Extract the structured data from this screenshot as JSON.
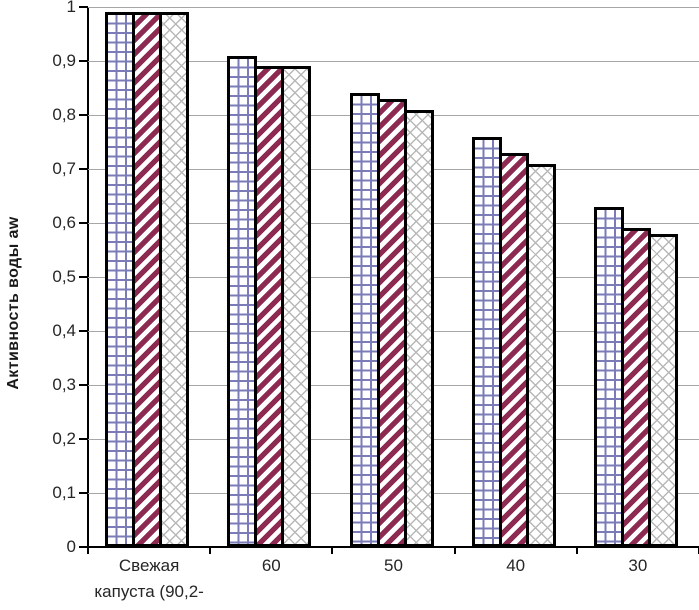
{
  "chart_data": {
    "type": "bar",
    "title": "",
    "xlabel": "",
    "ylabel": "Активность воды aw",
    "ylim": [
      0,
      1
    ],
    "ytick_labels": [
      "0",
      "0,1",
      "0,2",
      "0,3",
      "0,4",
      "0,5",
      "0,6",
      "0,7",
      "0,8",
      "0,9",
      "1"
    ],
    "categories": [
      "Свежая\nкапуста (90,2-",
      "60",
      "50",
      "40",
      "30"
    ],
    "series": [
      {
        "name": "grid-pattern-series",
        "pattern": "grid",
        "values": [
          0.99,
          0.91,
          0.84,
          0.76,
          0.63
        ]
      },
      {
        "name": "stripe-pattern-series",
        "pattern": "stripe",
        "values": [
          0.99,
          0.89,
          0.83,
          0.73,
          0.59
        ]
      },
      {
        "name": "cross-pattern-series",
        "pattern": "cross",
        "values": [
          0.99,
          0.89,
          0.81,
          0.71,
          0.58
        ]
      }
    ],
    "grid": true,
    "legend": false
  },
  "colors": {
    "grid_line": "#a6a6a6",
    "axis": "#000000",
    "bar_border": "#000000",
    "pattern_grid_line": "#7b7bb8",
    "pattern_stripe": "#8c2a52",
    "pattern_crosshatch": "#b8b8b8",
    "text": "#262626",
    "background": "#ffffff"
  }
}
